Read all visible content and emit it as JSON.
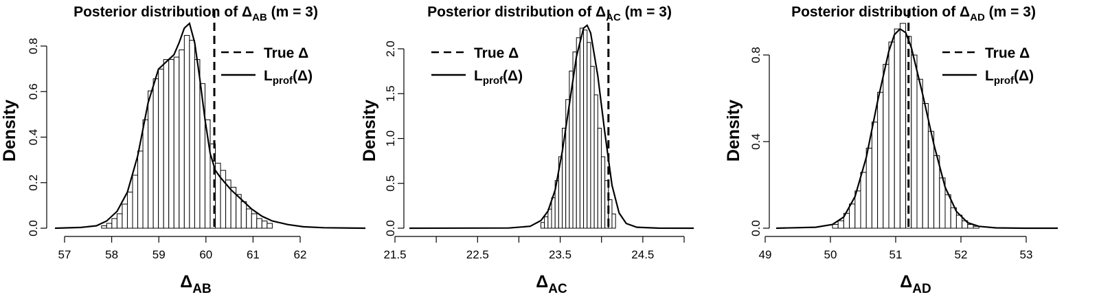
{
  "panels": [
    {
      "title_prefix": "Posterior distribution of Δ",
      "title_sub": "AB",
      "title_suffix": " (m = 3)",
      "xlabel_main": "Δ",
      "xlabel_sub": "AB",
      "ylabel": "Density",
      "legend": [
        {
          "style": "dashed",
          "label_main": "True Δ"
        },
        {
          "style": "solid",
          "label_main": "L",
          "label_sub": "prof",
          "label_tail": "(Δ)"
        }
      ]
    },
    {
      "title_prefix": "Posterior distribution of Δ",
      "title_sub": "AC",
      "title_suffix": " (m = 3)",
      "xlabel_main": "Δ",
      "xlabel_sub": "AC",
      "ylabel": "Density",
      "legend": [
        {
          "style": "dashed",
          "label_main": "True Δ"
        },
        {
          "style": "solid",
          "label_main": "L",
          "label_sub": "prof",
          "label_tail": "(Δ)"
        }
      ]
    },
    {
      "title_prefix": "Posterior distribution of Δ",
      "title_sub": "AD",
      "title_suffix": " (m = 3)",
      "xlabel_main": "Δ",
      "xlabel_sub": "AD",
      "ylabel": "Density",
      "legend": [
        {
          "style": "dashed",
          "label_main": "True Δ"
        },
        {
          "style": "solid",
          "label_main": "L",
          "label_sub": "prof",
          "label_tail": "(Δ)"
        }
      ]
    }
  ],
  "chart_data": [
    {
      "type": "bar",
      "title": "Posterior distribution of ΔAB (m = 3)",
      "xlabel": "ΔAB",
      "ylabel": "Density",
      "xlim": [
        56.8,
        62.8
      ],
      "ylim": [
        0,
        0.85
      ],
      "xticks": [
        57,
        58,
        59,
        60,
        61,
        62
      ],
      "xtick_labels": [
        "57",
        "58",
        "59",
        "60",
        "61",
        "62"
      ],
      "yticks": [
        0.0,
        0.2,
        0.4,
        0.6,
        0.8
      ],
      "ytick_labels": [
        "0.0",
        "0.2",
        "0.4",
        "0.6",
        "0.8"
      ],
      "true_value": 59.88,
      "histogram": {
        "bin_width": 0.1,
        "bin_starts": [
          57.7,
          57.8,
          57.9,
          58.0,
          58.1,
          58.2,
          58.3,
          58.4,
          58.5,
          58.6,
          58.7,
          58.8,
          58.9,
          59.0,
          59.1,
          59.2,
          59.3,
          59.4,
          59.5,
          59.6,
          59.7,
          59.8,
          59.9,
          60.0,
          60.1,
          60.2,
          60.3,
          60.4,
          60.5,
          60.6,
          60.7,
          60.8,
          60.9
        ],
        "densities": [
          0.01,
          0.02,
          0.04,
          0.06,
          0.1,
          0.15,
          0.22,
          0.32,
          0.45,
          0.57,
          0.62,
          0.66,
          0.7,
          0.7,
          0.71,
          0.74,
          0.8,
          0.78,
          0.7,
          0.6,
          0.45,
          0.35,
          0.27,
          0.24,
          0.2,
          0.17,
          0.14,
          0.11,
          0.08,
          0.06,
          0.04,
          0.03,
          0.02
        ]
      },
      "series": [
        {
          "name": "L_prof(Δ)",
          "x": [
            56.8,
            57.3,
            57.6,
            57.8,
            58.0,
            58.2,
            58.4,
            58.6,
            58.8,
            59.0,
            59.1,
            59.2,
            59.3,
            59.4,
            59.5,
            59.6,
            59.7,
            59.8,
            59.9,
            60.0,
            60.2,
            60.4,
            60.6,
            60.8,
            61.0,
            61.3,
            61.6,
            62.0,
            62.8
          ],
          "y": [
            0,
            0.003,
            0.01,
            0.03,
            0.07,
            0.15,
            0.3,
            0.52,
            0.66,
            0.7,
            0.72,
            0.77,
            0.83,
            0.85,
            0.77,
            0.62,
            0.45,
            0.31,
            0.24,
            0.21,
            0.16,
            0.12,
            0.08,
            0.05,
            0.03,
            0.015,
            0.006,
            0.002,
            0
          ]
        }
      ]
    },
    {
      "type": "bar",
      "title": "Posterior distribution of ΔAC (m = 3)",
      "xlabel": "ΔAC",
      "ylabel": "Density",
      "xlim": [
        21.1,
        25.1
      ],
      "ylim": [
        0,
        2.15
      ],
      "xticks": [
        21.5,
        22.0,
        22.5,
        23.0,
        23.5,
        24.0,
        24.5,
        25.0
      ],
      "xtick_labels": [
        "21.5",
        "",
        "22.5",
        "",
        "23.5",
        "",
        "24.5",
        ""
      ],
      "yticks": [
        0.0,
        0.5,
        1.0,
        1.5,
        2.0
      ],
      "ytick_labels": [
        "0.0",
        "0.5",
        "1.0",
        "1.5",
        "2.0"
      ],
      "true_value": 23.9,
      "histogram": {
        "bin_width": 0.05,
        "bin_starts": [
          22.95,
          23.0,
          23.05,
          23.1,
          23.15,
          23.2,
          23.25,
          23.3,
          23.35,
          23.4,
          23.45,
          23.5,
          23.55,
          23.6,
          23.65,
          23.7,
          23.75,
          23.8,
          23.85,
          23.9,
          23.95
        ],
        "densities": [
          0.06,
          0.12,
          0.2,
          0.32,
          0.5,
          0.75,
          1.05,
          1.35,
          1.65,
          1.85,
          2.0,
          2.1,
          2.08,
          1.95,
          1.7,
          1.4,
          1.05,
          0.75,
          0.5,
          0.3,
          0.15
        ]
      },
      "series": [
        {
          "name": "L_prof(Δ)",
          "x": [
            21.1,
            22.5,
            22.8,
            22.95,
            23.05,
            23.15,
            23.25,
            23.35,
            23.45,
            23.55,
            23.6,
            23.65,
            23.75,
            23.85,
            23.95,
            24.05,
            24.15,
            24.3,
            24.6,
            25.1
          ],
          "y": [
            0,
            0.002,
            0.02,
            0.08,
            0.18,
            0.4,
            0.8,
            1.3,
            1.8,
            2.1,
            2.13,
            2.05,
            1.6,
            1.0,
            0.45,
            0.16,
            0.05,
            0.01,
            0.001,
            0
          ]
        }
      ]
    },
    {
      "type": "bar",
      "title": "Posterior distribution of ΔAD (m = 3)",
      "xlabel": "ΔAD",
      "ylabel": "Density",
      "xlim": [
        48.8,
        53.8
      ],
      "ylim": [
        0,
        1.1
      ],
      "xticks": [
        49,
        50,
        51,
        52,
        53
      ],
      "xtick_labels": [
        "49",
        "50",
        "51",
        "52",
        "53"
      ],
      "yticks": [
        0.0,
        0.4,
        0.8
      ],
      "ytick_labels": [
        "0.0",
        "0.4",
        "0.8"
      ],
      "true_value": 51.15,
      "histogram": {
        "bin_width": 0.1,
        "bin_starts": [
          49.8,
          49.9,
          50.0,
          50.1,
          50.2,
          50.3,
          50.4,
          50.5,
          50.6,
          50.7,
          50.8,
          50.9,
          51.0,
          51.1,
          51.2,
          51.3,
          51.4,
          51.5,
          51.6,
          51.7,
          51.8,
          51.9,
          52.0,
          52.1,
          52.2,
          52.3
        ],
        "densities": [
          0.02,
          0.04,
          0.08,
          0.13,
          0.2,
          0.3,
          0.43,
          0.57,
          0.73,
          0.88,
          1.0,
          1.07,
          1.1,
          1.03,
          0.93,
          0.8,
          0.67,
          0.52,
          0.39,
          0.27,
          0.18,
          0.11,
          0.07,
          0.04,
          0.02,
          0.01
        ]
      },
      "series": [
        {
          "name": "L_prof(Δ)",
          "x": [
            48.8,
            49.5,
            49.8,
            50.0,
            50.2,
            50.4,
            50.6,
            50.8,
            50.9,
            51.0,
            51.1,
            51.2,
            51.4,
            51.6,
            51.8,
            52.0,
            52.2,
            52.4,
            52.7,
            53.2,
            53.8
          ],
          "y": [
            0,
            0.005,
            0.02,
            0.06,
            0.17,
            0.38,
            0.68,
            0.95,
            1.04,
            1.07,
            1.05,
            0.97,
            0.72,
            0.45,
            0.22,
            0.09,
            0.03,
            0.01,
            0.002,
            0,
            0
          ]
        }
      ]
    }
  ]
}
